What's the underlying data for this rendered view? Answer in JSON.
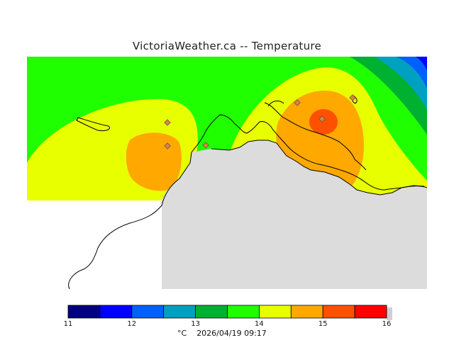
{
  "title": "VictoriaWeather.ca -- Temperature",
  "legend": {
    "unit": "°C",
    "ticks": [
      "11",
      "12",
      "13",
      "14",
      "15",
      "16"
    ],
    "colors": [
      "#000080",
      "#0000ff",
      "#0060ff",
      "#00a0c0",
      "#00b030",
      "#20ff00",
      "#e8ff00",
      "#ffa800",
      "#ff5000",
      "#ff0000"
    ]
  },
  "timestamp": "2026/04/19 09:17",
  "map": {
    "land_color": "#dcdcdc",
    "station_color": "#e08040"
  }
}
